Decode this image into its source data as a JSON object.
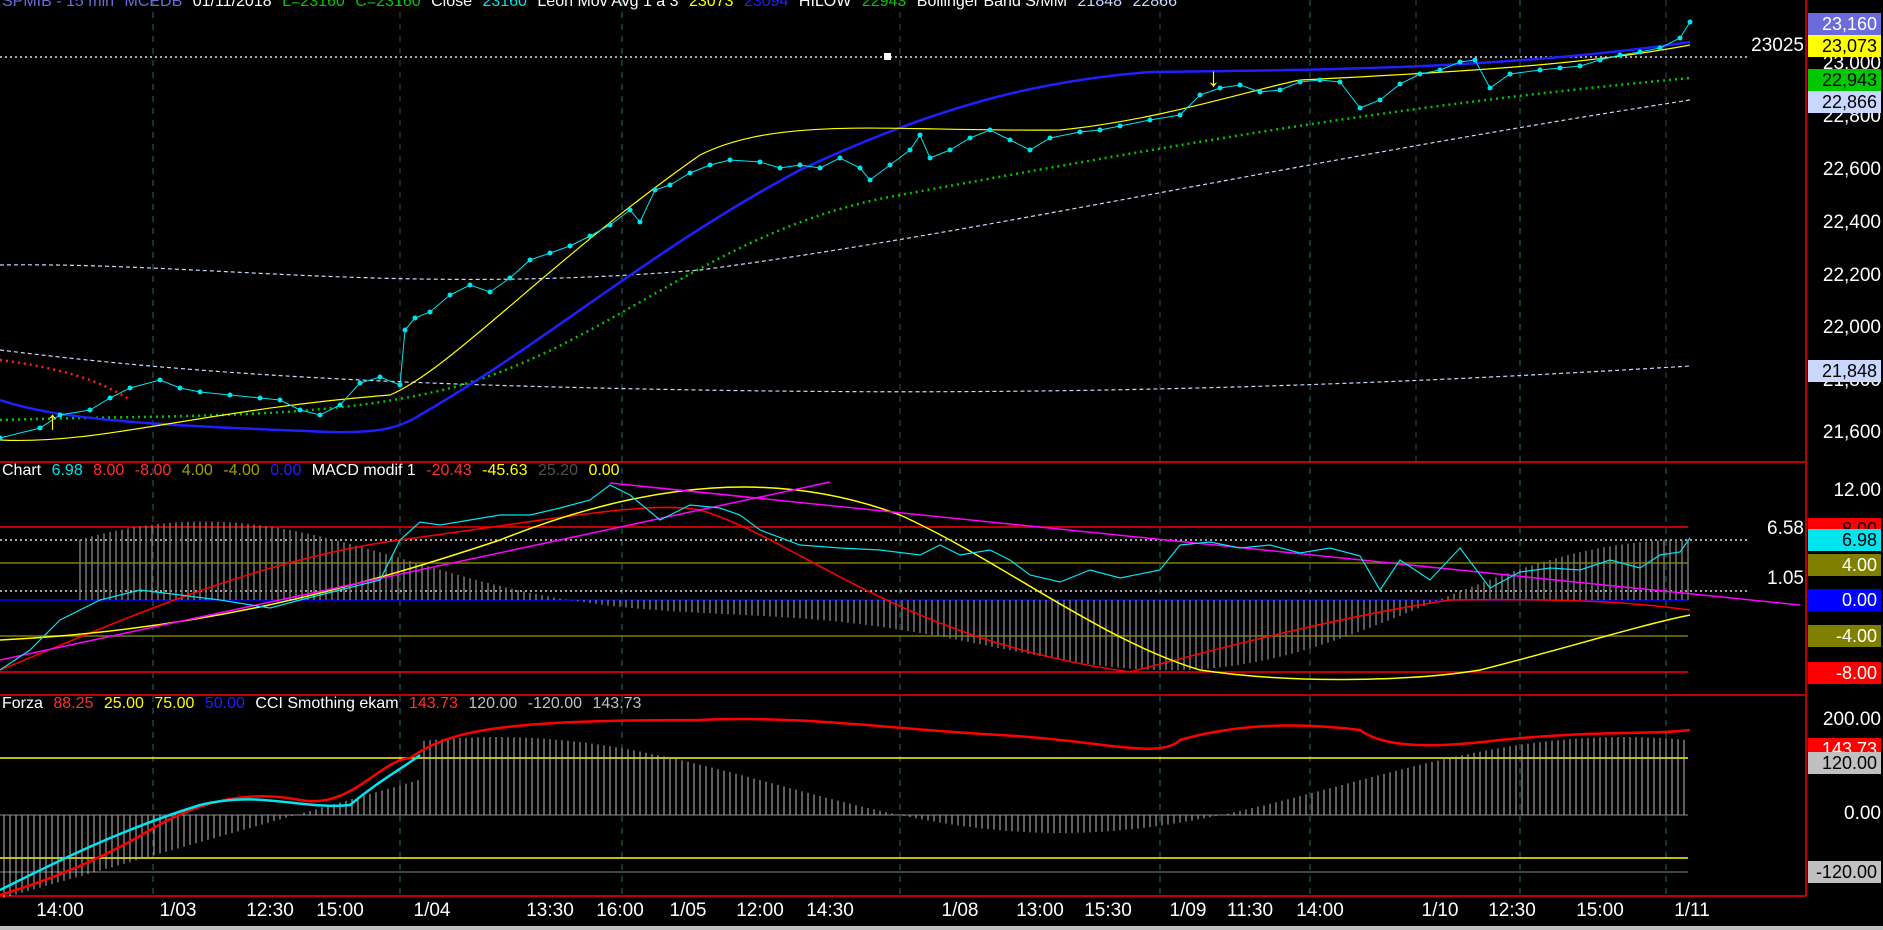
{
  "header_price": {
    "symbol": "SPMIB - 15 min",
    "source": "MCEDB",
    "date": "01/11/2018",
    "low": "L=23160",
    "close_eq": "C=23160",
    "close_label": "Close",
    "close_val": "23160",
    "mov_avg_label": "Leon Mov Avg 1 a 3",
    "mov_avg_v1": "23073",
    "mov_avg_v2": "23094",
    "hilow_label": "HILOW",
    "hilow_val": "22943",
    "boll_label": "Bollinger Band S/MM",
    "boll_v1": "21848",
    "boll_v2": "22866"
  },
  "header_macd": {
    "label": "Chart",
    "v1": "6.98",
    "v2": "8.00",
    "v3": "-8.00",
    "v4": "4.00",
    "v5": "-4.00",
    "v6": "0.00",
    "macd_label": "MACD modif 1",
    "m1": "-20.43",
    "m2": "-45.63",
    "m3": "25.20",
    "m4": "0.00"
  },
  "header_cci": {
    "label": "Forza",
    "v1": "88.25",
    "v2": "25.00",
    "v3": "75.00",
    "v4": "50.00",
    "cci_label": "CCI Smothing ekam",
    "c1": "143.73",
    "c2": "120.00",
    "c3": "-120.00",
    "c4": "143.73"
  },
  "price_axis": [
    "22,800",
    "22,600",
    "22,400",
    "22,200",
    "22,000",
    "21,600"
  ],
  "price_axis_hidden": [
    "23,000",
    "21,800"
  ],
  "macd_axis": [
    "12.00"
  ],
  "cci_axis": [
    "200.00",
    "0.00"
  ],
  "badges": [
    {
      "text": "23,160",
      "bg": "#6b6bdb",
      "fg": "#ffffff"
    },
    {
      "text": "23,073",
      "bg": "#ffff00",
      "fg": "#000000"
    },
    {
      "text": "22,943",
      "bg": "#00c800",
      "fg": "#000000"
    },
    {
      "text": "22,866",
      "bg": "#c9d8ff",
      "fg": "#000000"
    },
    {
      "text": "21,848",
      "bg": "#c9d8ff",
      "fg": "#000000"
    },
    {
      "text": "8.00",
      "bg": "#ff0000",
      "fg": "#000000"
    },
    {
      "text": "6.98",
      "bg": "#00e5ee",
      "fg": "#000000"
    },
    {
      "text": "4.00",
      "bg": "#808000",
      "fg": "#ffffff"
    },
    {
      "text": "0.00",
      "bg": "#0000ff",
      "fg": "#ffffff"
    },
    {
      "text": "-4.00",
      "bg": "#808000",
      "fg": "#ffffff"
    },
    {
      "text": "-8.00",
      "bg": "#ff0000",
      "fg": "#ffffff"
    },
    {
      "text": "143.73",
      "bg": "#ff0000",
      "fg": "#ffffff"
    },
    {
      "text": "120.00",
      "bg": "#c0c0c0",
      "fg": "#000000"
    },
    {
      "text": "-120.00",
      "bg": "#c0c0c0",
      "fg": "#000000"
    }
  ],
  "ref_lines": {
    "price_ref": "23025",
    "macd_ref1": "6.58",
    "macd_ref2": "1.05"
  },
  "time_labels": [
    "14:00",
    "1/03",
    "12:30",
    "15:00",
    "1/04",
    "13:30",
    "16:00",
    "1/05",
    "12:00",
    "14:30",
    "1/08",
    "13:00",
    "15:30",
    "1/09",
    "11:30",
    "14:00",
    "1/10",
    "12:30",
    "15:00",
    "1/11"
  ],
  "colors": {
    "close": "#00e5ee",
    "mov_avg": "#ffff00",
    "mov_avg2": "#2020ff",
    "hilow": "#00c800",
    "bollinger": "#c9d8ff",
    "grid": "#2a6a6a",
    "panel_sep": "#c00000"
  },
  "icons": [
    "up-arrow-icon",
    "down-arrow-icon"
  ]
}
